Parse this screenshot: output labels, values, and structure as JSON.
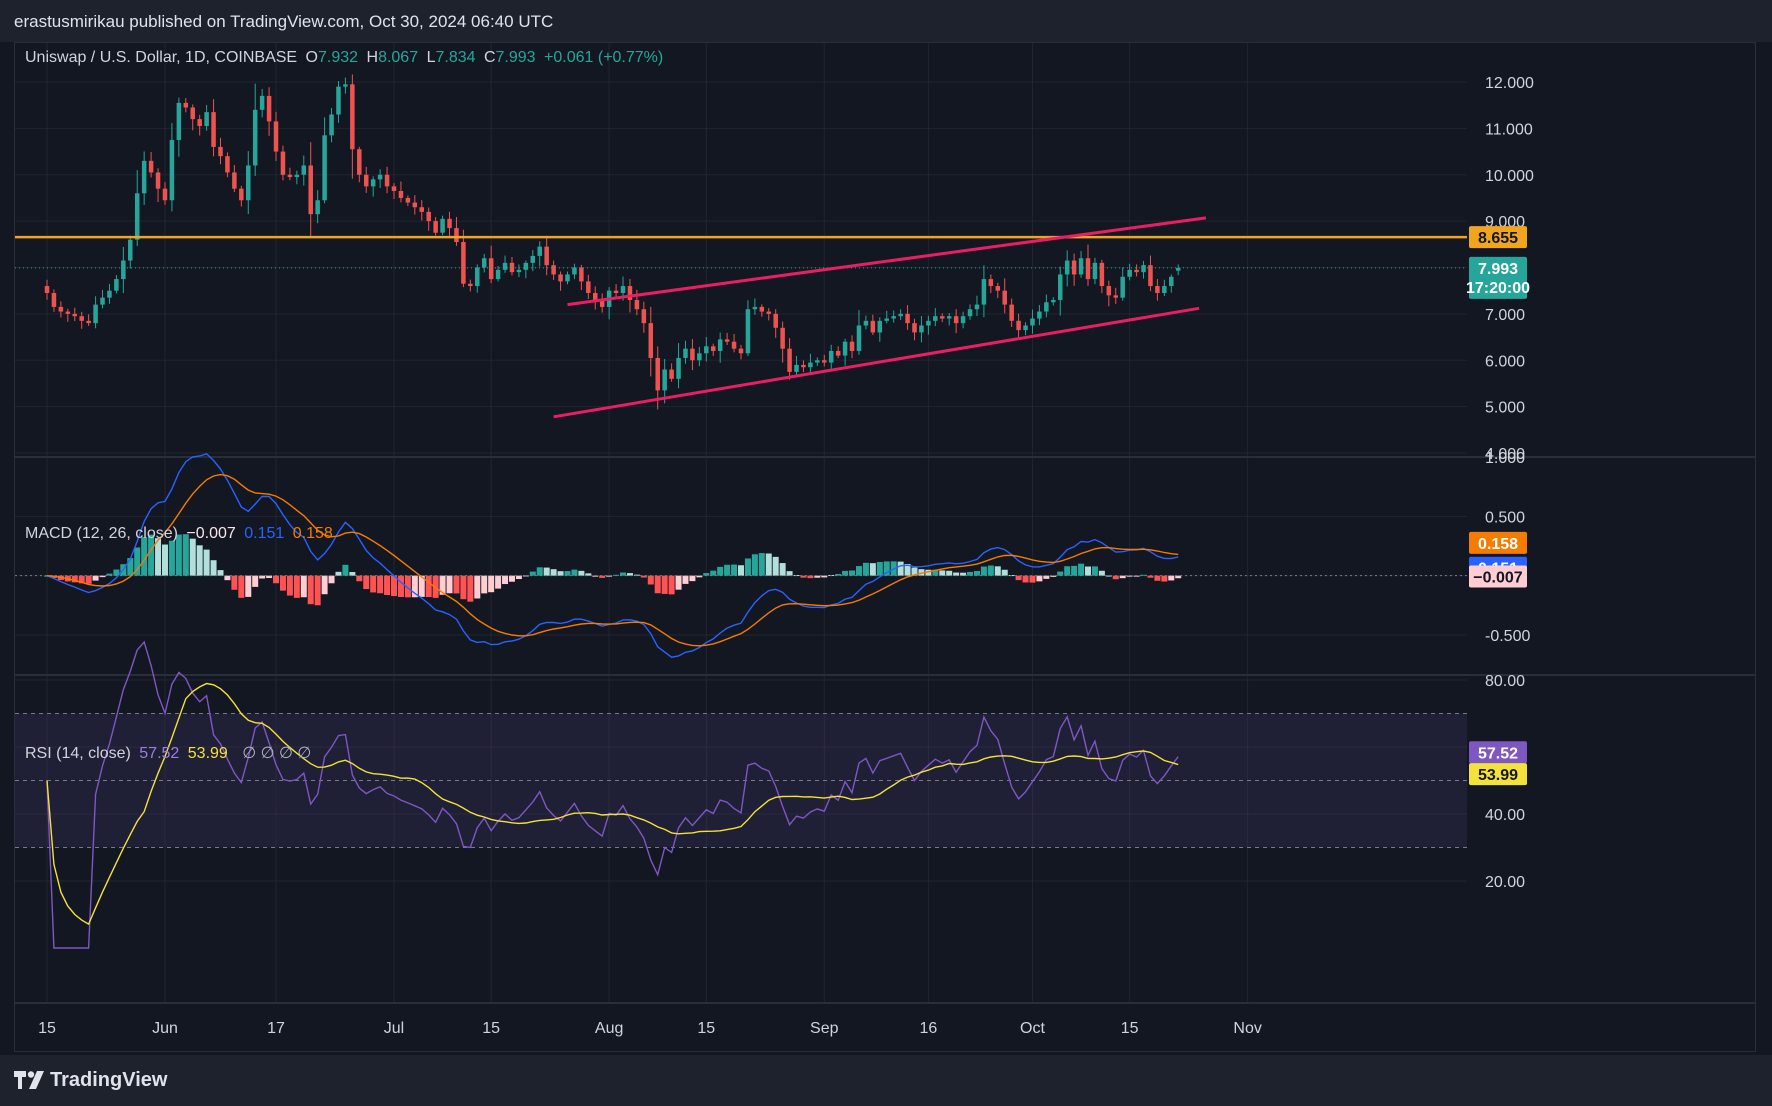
{
  "header": {
    "published": "erastusmirikau published on TradingView.com, Oct 30, 2024 06:40 UTC"
  },
  "footer": {
    "brand": "TradingView",
    "logo_icon": "tradingview-logo-icon"
  },
  "symbol_legend": {
    "name": "Uniswap / U.S. Dollar, 1D, COINBASE",
    "o_label": "O",
    "o_value": "7.932",
    "h_label": "H",
    "h_value": "8.067",
    "l_label": "L",
    "l_value": "7.834",
    "c_label": "C",
    "c_value": "7.993",
    "change": "+0.061 (+0.77%)"
  },
  "macd_legend": {
    "name": "MACD (12, 26, close)",
    "hist": "−0.007",
    "macd": "0.151",
    "signal": "0.158"
  },
  "rsi_legend": {
    "name": "RSI (14, close)",
    "rsi": "57.52",
    "ma": "53.99",
    "nulls": "∅ ∅ ∅ ∅"
  },
  "colors": {
    "up": "#26a69a",
    "down": "#ef5350",
    "horizontal_line": "#f0a520",
    "channel": "#e91e63",
    "macd": "#2962ff",
    "signal": "#f57c00",
    "rsi": "#7e57c2",
    "rsi_ma": "#f5e13b",
    "background": "#131722",
    "grid": "#2a2e39"
  },
  "chart_data": [
    {
      "type": "candlestick",
      "title": "Uniswap / U.S. Dollar, 1D, COINBASE",
      "ylim": [
        4,
        12.5
      ],
      "y_ticks": [
        "12.000",
        "11.000",
        "10.000",
        "9.000",
        "7.000",
        "6.000",
        "5.000",
        "4.000"
      ],
      "x_ticks": [
        "15",
        "Jun",
        "17",
        "Jul",
        "15",
        "Aug",
        "15",
        "Sep",
        "16",
        "Oct",
        "15",
        "Nov"
      ],
      "x_tick_days": [
        0,
        17,
        33,
        50,
        64,
        81,
        95,
        112,
        127,
        142,
        156,
        173
      ],
      "price_line": {
        "value": 7.993,
        "label": "7.993",
        "countdown": "17:20:00"
      },
      "horizontal_level": {
        "value": 8.655,
        "label": "8.655"
      },
      "channel_upper": [
        [
          75,
          7.2
        ],
        [
          167,
          9.07
        ]
      ],
      "channel_lower": [
        [
          73,
          4.78
        ],
        [
          166,
          7.12
        ]
      ],
      "close": [
        7.45,
        7.15,
        7.05,
        7.0,
        6.95,
        6.85,
        6.8,
        7.2,
        7.35,
        7.5,
        7.75,
        8.15,
        8.6,
        9.6,
        10.3,
        10.05,
        9.7,
        9.45,
        10.75,
        11.55,
        11.45,
        11.2,
        11.05,
        11.35,
        10.6,
        10.4,
        10.05,
        9.7,
        9.45,
        10.2,
        11.4,
        11.7,
        11.15,
        10.5,
        10.0,
        9.95,
        10.0,
        10.2,
        9.15,
        9.45,
        10.85,
        11.3,
        11.9,
        11.95,
        10.55,
        10.0,
        9.75,
        9.9,
        10.0,
        9.75,
        9.65,
        9.5,
        9.4,
        9.3,
        9.2,
        9.0,
        8.75,
        9.05,
        8.85,
        8.55,
        7.65,
        7.6,
        8.0,
        8.2,
        7.75,
        7.95,
        8.1,
        7.9,
        7.95,
        8.1,
        8.25,
        8.45,
        8.05,
        7.85,
        7.7,
        7.85,
        8.0,
        7.7,
        7.45,
        7.3,
        7.15,
        7.5,
        7.45,
        7.6,
        7.3,
        7.1,
        6.8,
        6.05,
        5.35,
        5.8,
        5.6,
        6.05,
        6.25,
        6.0,
        6.15,
        6.3,
        6.2,
        6.45,
        6.4,
        6.25,
        6.15,
        7.1,
        7.15,
        7.05,
        7.0,
        6.7,
        6.25,
        5.75,
        5.9,
        5.85,
        5.95,
        6.0,
        5.95,
        6.2,
        6.1,
        6.4,
        6.2,
        6.75,
        6.85,
        6.6,
        6.85,
        6.9,
        6.95,
        7.0,
        6.8,
        6.6,
        6.75,
        6.85,
        6.95,
        6.9,
        6.95,
        6.8,
        6.95,
        7.1,
        7.2,
        7.75,
        7.6,
        7.5,
        7.2,
        6.85,
        6.65,
        6.75,
        6.9,
        7.05,
        7.25,
        7.3,
        7.85,
        8.15,
        7.85,
        8.2,
        7.75,
        8.1,
        7.6,
        7.4,
        7.35,
        7.8,
        7.95,
        7.9,
        8.05,
        7.6,
        7.45,
        7.6,
        7.8,
        7.99
      ],
      "ohlc_final": {
        "open": 7.932,
        "high": 8.067,
        "low": 7.834,
        "close": 7.993
      }
    },
    {
      "type": "histogram+line",
      "title": "MACD (12, 26, close)",
      "ylim": [
        -0.75,
        1.0
      ],
      "y_ticks": [
        "1.000",
        "0.500",
        "-0.500"
      ],
      "last_values": {
        "histogram": -0.007,
        "macd": 0.151,
        "signal": 0.158
      },
      "value_labels": [
        "0.158",
        "0.151",
        "−0.007"
      ]
    },
    {
      "type": "line",
      "title": "RSI (14, close)",
      "ylim": [
        15,
        80
      ],
      "y_ticks": [
        "80.00",
        "40.00",
        "20.00"
      ],
      "bands": [
        30,
        50,
        70
      ],
      "last_values": {
        "rsi": 57.52,
        "ma": 53.99
      },
      "value_labels": [
        "57.52",
        "53.99"
      ]
    }
  ]
}
